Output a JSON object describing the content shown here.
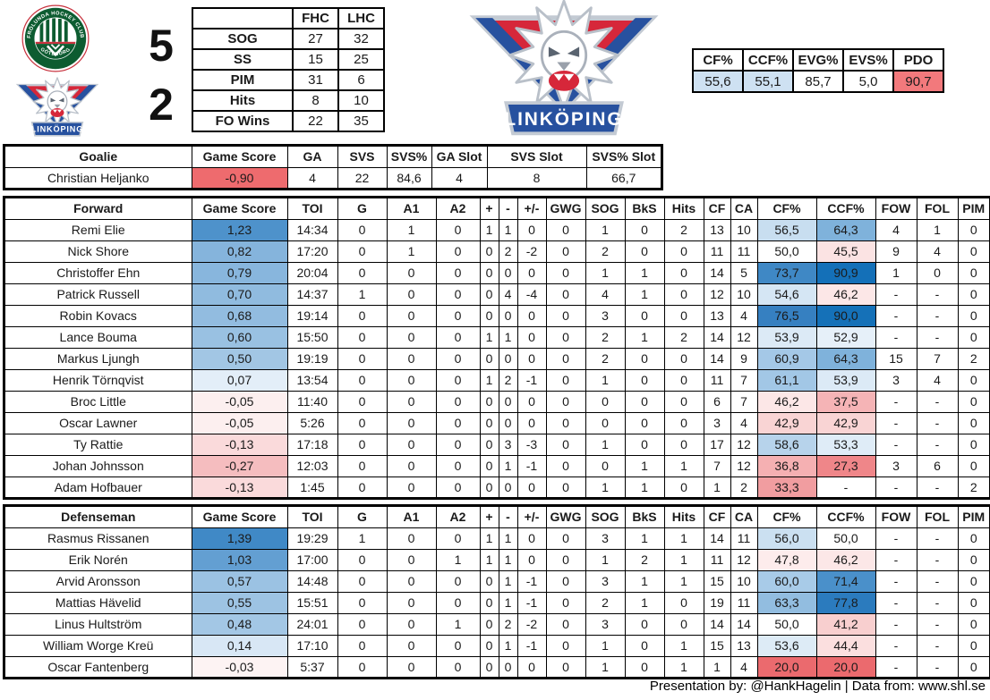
{
  "header": {
    "home_team": {
      "name": "Frölunda Hockey Club",
      "score": "5",
      "logo_text_top": "FRÖLUNDA HOCKEY CLUB",
      "logo_text_bottom": "GÖTEBORG"
    },
    "away_team": {
      "name": "Linköping",
      "score": "2",
      "logo_banner": "LINKÖPING"
    },
    "score_table": {
      "col_headers": [
        "FHC",
        "LHC"
      ],
      "rows": [
        {
          "label": "SOG",
          "values": [
            "27",
            "32"
          ]
        },
        {
          "label": "SS",
          "values": [
            "15",
            "25"
          ]
        },
        {
          "label": "PIM",
          "values": [
            "31",
            "6"
          ]
        },
        {
          "label": "Hits",
          "values": [
            "8",
            "10"
          ]
        },
        {
          "label": "FO Wins",
          "values": [
            "22",
            "35"
          ]
        }
      ]
    },
    "team_stats_table": {
      "headers": [
        "CF%",
        "CCF%",
        "EVG%",
        "EVS%",
        "PDO"
      ],
      "values": [
        "55,6",
        "55,1",
        "85,7",
        "5,0",
        "90,7"
      ],
      "cell_colors": [
        "#CEE1F2",
        "#CEE1F2",
        "#FFFFFF",
        "#FFFFFF",
        "#F2797C"
      ]
    }
  },
  "goalie_table": {
    "headers": [
      "Goalie",
      "Game Score",
      "GA",
      "SVS",
      "SVS%",
      "GA Slot",
      "SVS Slot",
      "SVS% Slot"
    ],
    "rows": [
      {
        "name": "Christian Heljanko",
        "game_score": "-0,90",
        "game_score_color": "#EE6B6E",
        "values": [
          "4",
          "22",
          "84,6",
          "4",
          "8",
          "66,7"
        ]
      }
    ]
  },
  "skater_columns": [
    "Game Score",
    "TOI",
    "G",
    "A1",
    "A2",
    "+",
    "-",
    "+/-",
    "GWG",
    "SOG",
    "BkS",
    "Hits",
    "CF",
    "CA",
    "CF%",
    "CCF%",
    "FOW",
    "FOL",
    "PIM"
  ],
  "forward_table": {
    "title": "Forward",
    "rows": [
      {
        "name": "Remi Elie",
        "gs": "1,23",
        "gs_color": "#4E92CB",
        "stats": [
          "14:34",
          "0",
          "1",
          "0",
          "1",
          "1",
          "0",
          "0",
          "1",
          "0",
          "2",
          "13",
          "10"
        ],
        "cf_pct": "56,5",
        "cf_color": "#C8DEF0",
        "ccf_pct": "64,3",
        "ccf_color": "#7FB2DB",
        "tail": [
          "4",
          "1",
          "0"
        ]
      },
      {
        "name": "Nick Shore",
        "gs": "0,82",
        "gs_color": "#85B4DC",
        "stats": [
          "17:20",
          "0",
          "1",
          "0",
          "0",
          "2",
          "-2",
          "0",
          "2",
          "0",
          "0",
          "11",
          "11"
        ],
        "cf_pct": "50,0",
        "cf_color": "#FFFFFF",
        "ccf_pct": "45,5",
        "ccf_color": "#FBE3E3",
        "tail": [
          "9",
          "4",
          "0"
        ]
      },
      {
        "name": "Christoffer Ehn",
        "gs": "0,79",
        "gs_color": "#88B6DD",
        "stats": [
          "20:04",
          "0",
          "0",
          "0",
          "0",
          "0",
          "0",
          "0",
          "1",
          "1",
          "0",
          "14",
          "5"
        ],
        "cf_pct": "73,7",
        "cf_color": "#3F88C5",
        "ccf_pct": "90,9",
        "ccf_color": "#1470B8",
        "tail": [
          "1",
          "0",
          "0"
        ]
      },
      {
        "name": "Patrick Russell",
        "gs": "0,70",
        "gs_color": "#90BBDF",
        "stats": [
          "14:37",
          "1",
          "0",
          "0",
          "0",
          "4",
          "-4",
          "0",
          "4",
          "1",
          "0",
          "12",
          "10"
        ],
        "cf_pct": "54,6",
        "cf_color": "#D5E6F4",
        "ccf_pct": "46,2",
        "ccf_color": "#FCE7E7",
        "tail": [
          "-",
          "-",
          "0"
        ]
      },
      {
        "name": "Robin Kovacs",
        "gs": "0,68",
        "gs_color": "#92BCE0",
        "stats": [
          "19:14",
          "0",
          "0",
          "0",
          "0",
          "0",
          "0",
          "0",
          "3",
          "0",
          "0",
          "13",
          "4"
        ],
        "cf_pct": "76,5",
        "cf_color": "#3680C1",
        "ccf_pct": "90,0",
        "ccf_color": "#1571B8",
        "tail": [
          "-",
          "-",
          "0"
        ]
      },
      {
        "name": "Lance Bouma",
        "gs": "0,60",
        "gs_color": "#99C1E2",
        "stats": [
          "15:50",
          "0",
          "0",
          "0",
          "1",
          "1",
          "0",
          "0",
          "2",
          "1",
          "2",
          "14",
          "12"
        ],
        "cf_pct": "53,9",
        "cf_color": "#DCEAF6",
        "ccf_pct": "52,9",
        "ccf_color": "#E6F0F9",
        "tail": [
          "-",
          "-",
          "0"
        ]
      },
      {
        "name": "Markus Ljungh",
        "gs": "0,50",
        "gs_color": "#A2C6E4",
        "stats": [
          "19:19",
          "0",
          "0",
          "0",
          "0",
          "0",
          "0",
          "0",
          "2",
          "0",
          "0",
          "14",
          "9"
        ],
        "cf_pct": "60,9",
        "cf_color": "#A4C8E7",
        "ccf_pct": "64,3",
        "ccf_color": "#7FB2DB",
        "tail": [
          "15",
          "7",
          "2"
        ]
      },
      {
        "name": "Henrik Törnqvist",
        "gs": "0,07",
        "gs_color": "#E3EEF8",
        "stats": [
          "13:54",
          "0",
          "0",
          "0",
          "1",
          "2",
          "-1",
          "0",
          "1",
          "0",
          "0",
          "11",
          "7"
        ],
        "cf_pct": "61,1",
        "cf_color": "#A2C7E6",
        "ccf_pct": "53,9",
        "ccf_color": "#DCEAF6",
        "tail": [
          "3",
          "4",
          "0"
        ]
      },
      {
        "name": "Broc Little",
        "gs": "-0,05",
        "gs_color": "#FCEFEF",
        "stats": [
          "11:40",
          "0",
          "0",
          "0",
          "0",
          "0",
          "0",
          "0",
          "0",
          "0",
          "0",
          "6",
          "7"
        ],
        "cf_pct": "46,2",
        "cf_color": "#FCE7E7",
        "ccf_pct": "37,5",
        "ccf_color": "#F5B4B6",
        "tail": [
          "-",
          "-",
          "0"
        ]
      },
      {
        "name": "Oscar Lawner",
        "gs": "-0,05",
        "gs_color": "#FCEFEF",
        "stats": [
          "5:26",
          "0",
          "0",
          "0",
          "0",
          "0",
          "0",
          "0",
          "0",
          "0",
          "0",
          "3",
          "4"
        ],
        "cf_pct": "42,9",
        "cf_color": "#F9D4D4",
        "ccf_pct": "42,9",
        "ccf_color": "#F9D4D4",
        "tail": [
          "-",
          "-",
          "0"
        ]
      },
      {
        "name": "Ty Rattie",
        "gs": "-0,13",
        "gs_color": "#FADADB",
        "stats": [
          "17:18",
          "0",
          "0",
          "0",
          "0",
          "3",
          "-3",
          "0",
          "1",
          "0",
          "0",
          "17",
          "12"
        ],
        "cf_pct": "58,6",
        "cf_color": "#B7D3EB",
        "ccf_pct": "53,3",
        "ccf_color": "#DFECF7",
        "tail": [
          "-",
          "-",
          "0"
        ]
      },
      {
        "name": "Johan Johnsson",
        "gs": "-0,27",
        "gs_color": "#F5BDBF",
        "stats": [
          "12:03",
          "0",
          "0",
          "0",
          "0",
          "1",
          "-1",
          "0",
          "0",
          "1",
          "1",
          "7",
          "12"
        ],
        "cf_pct": "36,8",
        "cf_color": "#F5B0B2",
        "ccf_pct": "27,3",
        "ccf_color": "#EF8689",
        "tail": [
          "3",
          "6",
          "0"
        ]
      },
      {
        "name": "Adam Hofbauer",
        "gs": "-0,13",
        "gs_color": "#FADADB",
        "stats": [
          "1:45",
          "0",
          "0",
          "0",
          "0",
          "0",
          "0",
          "0",
          "1",
          "1",
          "0",
          "1",
          "2"
        ],
        "cf_pct": "33,3",
        "cf_color": "#F19DA0",
        "ccf_pct": "-",
        "ccf_color": "#FFFFFF",
        "tail": [
          "-",
          "-",
          "2"
        ]
      }
    ]
  },
  "defense_table": {
    "title": "Defenseman",
    "rows": [
      {
        "name": "Rasmus Rissanen",
        "gs": "1,39",
        "gs_color": "#4089C6",
        "stats": [
          "19:29",
          "1",
          "0",
          "0",
          "1",
          "1",
          "0",
          "0",
          "3",
          "1",
          "1",
          "14",
          "11"
        ],
        "cf_pct": "56,0",
        "cf_color": "#CBE0F1",
        "ccf_pct": "50,0",
        "ccf_color": "#FFFFFF",
        "tail": [
          "-",
          "-",
          "0"
        ]
      },
      {
        "name": "Erik Norén",
        "gs": "1,03",
        "gs_color": "#639FD2",
        "stats": [
          "17:00",
          "0",
          "0",
          "1",
          "1",
          "1",
          "0",
          "0",
          "1",
          "2",
          "1",
          "11",
          "12"
        ],
        "cf_pct": "47,8",
        "cf_color": "#FDECEC",
        "ccf_pct": "46,2",
        "ccf_color": "#FCE7E7",
        "tail": [
          "-",
          "-",
          "0"
        ]
      },
      {
        "name": "Arvid Aronsson",
        "gs": "0,57",
        "gs_color": "#9BC2E3",
        "stats": [
          "14:48",
          "0",
          "0",
          "0",
          "0",
          "1",
          "-1",
          "0",
          "3",
          "1",
          "1",
          "15",
          "10"
        ],
        "cf_pct": "60,0",
        "cf_color": "#A8CBE8",
        "ccf_pct": "71,4",
        "ccf_color": "#4A90CA",
        "tail": [
          "-",
          "-",
          "0"
        ]
      },
      {
        "name": "Mattias Hävelid",
        "gs": "0,55",
        "gs_color": "#9DC3E3",
        "stats": [
          "15:51",
          "0",
          "0",
          "0",
          "0",
          "1",
          "-1",
          "0",
          "2",
          "1",
          "0",
          "19",
          "11"
        ],
        "cf_pct": "63,3",
        "cf_color": "#92BDE0",
        "ccf_pct": "77,8",
        "ccf_color": "#2B7BBE",
        "tail": [
          "-",
          "-",
          "0"
        ]
      },
      {
        "name": "Linus Hultström",
        "gs": "0,48",
        "gs_color": "#A3C7E5",
        "stats": [
          "24:01",
          "0",
          "0",
          "1",
          "0",
          "2",
          "-2",
          "0",
          "3",
          "0",
          "0",
          "14",
          "14"
        ],
        "cf_pct": "50,0",
        "cf_color": "#FFFFFF",
        "ccf_pct": "41,2",
        "ccf_color": "#F8CFCF",
        "tail": [
          "-",
          "-",
          "0"
        ]
      },
      {
        "name": "William Worge Kreü",
        "gs": "0,14",
        "gs_color": "#D8E7F5",
        "stats": [
          "17:10",
          "0",
          "0",
          "0",
          "0",
          "1",
          "-1",
          "0",
          "1",
          "0",
          "1",
          "15",
          "13"
        ],
        "cf_pct": "53,6",
        "cf_color": "#DDEBF6",
        "ccf_pct": "44,4",
        "ccf_color": "#FBDFDF",
        "tail": [
          "-",
          "-",
          "0"
        ]
      },
      {
        "name": "Oscar Fantenberg",
        "gs": "-0,03",
        "gs_color": "#FDF3F3",
        "stats": [
          "5:37",
          "0",
          "0",
          "0",
          "0",
          "0",
          "0",
          "0",
          "1",
          "0",
          "1",
          "1",
          "4"
        ],
        "cf_pct": "20,0",
        "cf_color": "#EB6A6E",
        "ccf_pct": "20,0",
        "ccf_color": "#EB6A6E",
        "tail": [
          "-",
          "-",
          "0"
        ]
      }
    ]
  },
  "footer": {
    "credit": "Presentation by: @HankHagelin | Data from: www.shl.se"
  },
  "colors": {
    "positive_high": "#1470B8",
    "negative_high": "#EB6A6E",
    "frolunda_green": "#0D5C31",
    "frolunda_red": "#C8323E",
    "lhc_red": "#D6273A",
    "lhc_blue": "#27519F"
  }
}
